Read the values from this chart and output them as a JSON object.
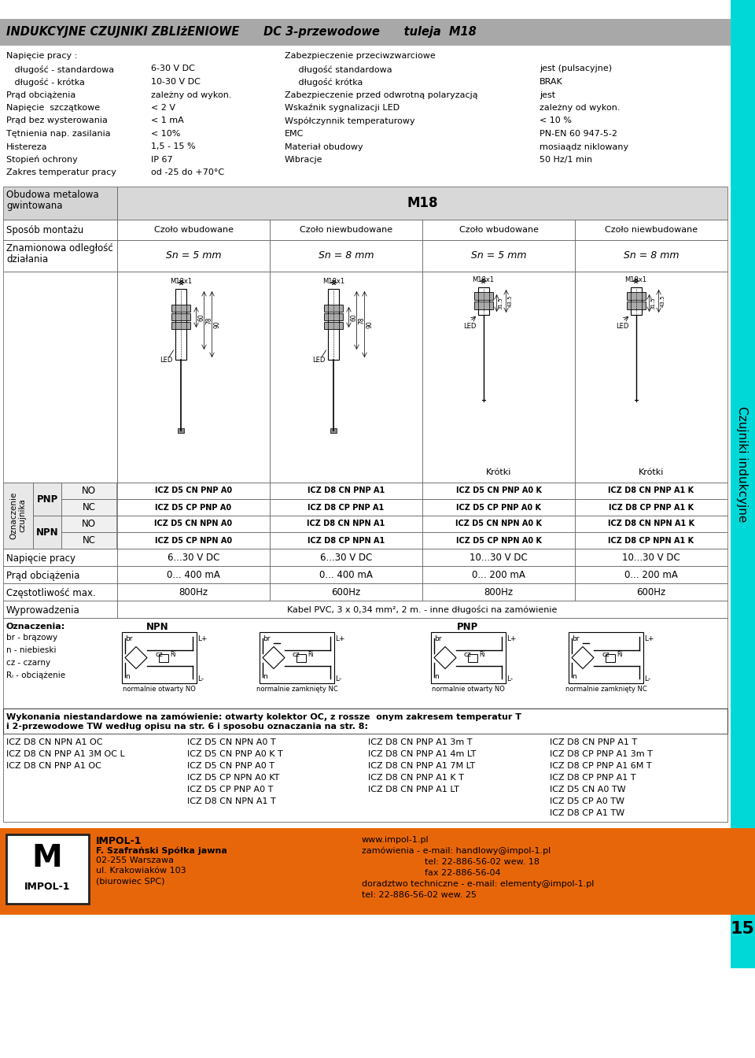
{
  "title": "INDUKCYJNE CZUJNIKI ZBLIżENIOWE      DC 3-przewodowe      tuleja  M18",
  "specs_left": [
    [
      "Napięcie pracy :",
      "",
      false
    ],
    [
      "   długość - standardowa",
      "6-30 V DC",
      false
    ],
    [
      "   długość - krótka",
      "10-30 V DC",
      false
    ],
    [
      "Prąd obciążenia",
      "zależny od wykon.",
      false
    ],
    [
      "Napięcie  szczątkowe",
      "< 2 V",
      false
    ],
    [
      "Prąd bez wysterowania",
      "< 1 mA",
      false
    ],
    [
      "Tętnienia nap. zasilania",
      "< 10%",
      false
    ],
    [
      "Histereza",
      "1,5 - 15 %",
      false
    ],
    [
      "Stopień ochrony",
      "IP 67",
      false
    ],
    [
      "Zakres temperatur pracy",
      "od -25 do +70°C",
      false
    ]
  ],
  "specs_right": [
    [
      "Zabezpieczenie przeciwzwarciowe",
      "",
      false
    ],
    [
      "     długość standardowa",
      "jest (pulsacyjne)",
      false
    ],
    [
      "     długość krótka",
      "BRAK",
      false
    ],
    [
      "Zabezpieczenie przed odwrotną polaryzacją",
      "jest",
      false
    ],
    [
      "Wskaźnik sygnalizacji LED",
      "zależny od wykon.",
      false
    ],
    [
      "Współczynnik temperaturowy",
      "< 10 %",
      false
    ],
    [
      "EMC",
      "PN-EN 60 947-5-2",
      false
    ],
    [
      "Materiał obudowy",
      "mosiaądz niklowany",
      false
    ],
    [
      "Wibracje",
      "50 Hz/1 min",
      false
    ]
  ],
  "mounting_types": [
    "Czoło wbudowane",
    "Czoło niewbudowane",
    "Czoło wbudowane",
    "Czoło niewbudowane"
  ],
  "distances": [
    "Sn = 5 mm",
    "Sn = 8 mm",
    "Sn = 5 mm",
    "Sn = 8 mm"
  ],
  "sensor_codes_PNP_NO": [
    "ICZ D5 CN PNP A0",
    "ICZ D8 CN PNP A1",
    "ICZ D5 CN PNP A0 K",
    "ICZ D8 CN PNP A1 K"
  ],
  "sensor_codes_PNP_NC": [
    "ICZ D5 CP PNP A0",
    "ICZ D8 CP PNP A1",
    "ICZ D5 CP PNP A0 K",
    "ICZ D8 CP PNP A1 K"
  ],
  "sensor_codes_NPN_NO": [
    "ICZ D5 CN NPN A0",
    "ICZ D8 CN NPN A1",
    "ICZ D5 CN NPN A0 K",
    "ICZ D8 CN NPN A1 K"
  ],
  "sensor_codes_NPN_NC": [
    "ICZ D5 CP NPN A0",
    "ICZ D8 CP NPN A1",
    "ICZ D5 CP NPN A0 K",
    "ICZ D8 CP NPN A1 K"
  ],
  "voltage_row": [
    "6...30 V DC",
    "6...30 V DC",
    "10...30 V DC",
    "10...30 V DC"
  ],
  "current_row": [
    "0... 400 mA",
    "0... 400 mA",
    "0... 200 mA",
    "0... 200 mA"
  ],
  "freq_row": [
    "800Hz",
    "600Hz",
    "800Hz",
    "600Hz"
  ],
  "cable_row": "Kabel PVC, 3 x 0,34 mm², 2 m. - inne długości na zamówienie",
  "wykonania_line1": "Wykonania niestandardowe na zamówienie: otwarty kolektor OC, z rossze  onym zakresem temperatur T",
  "wykonania_line2": "i 2-przewodowe TW według opisu na str. 6 i sposobu oznaczania na str. 8:",
  "bottom_col1": [
    "ICZ D8 CN NPN A1 OC",
    "ICZ D8 CN PNP A1 3M OC L",
    "ICZ D8 CN PNP A1 OC"
  ],
  "bottom_col2": [
    "ICZ D5 CN NPN A0 T",
    "ICZ D5 CN PNP A0 K T",
    "ICZ D5 CN PNP A0 T",
    "ICZ D5 CP NPN A0 KT",
    "ICZ D5 CP PNP A0 T",
    "ICZ D8 CN NPN A1 T"
  ],
  "bottom_col3": [
    "ICZ D8 CN PNP A1 3m T",
    "ICZ D8 CN PNP A1 4m LT",
    "ICZ D8 CN PNP A1 7M LT",
    "ICZ D8 CN PNP A1 K T",
    "ICZ D8 CN PNP A1 LT"
  ],
  "bottom_col4": [
    "ICZ D8 CN PNP A1 T",
    "ICZ D8 CP PNP A1 3m T",
    "ICZ D8 CP PNP A1 6M T",
    "ICZ D8 CP PNP A1 T",
    "ICZ D5 CN A0 TW",
    "ICZ D5 CP A0 TW",
    "ICZ D8 CP A1 TW"
  ],
  "footer_company_lines": [
    "IMPOL-1",
    "F. Szafrański Spółka jawna",
    "02-255 Warszawa",
    "ul. Krakowiaków 103",
    "(biurowiec SPC)"
  ],
  "footer_web_lines": [
    "www.impol-1.pl",
    "zamówienia - e-mail: handlowy@impol-1.pl",
    "tel: 22-886-56-02 wew. 18",
    "fax 22-886-56-04",
    "doradztwo techniczne - e-mail: elementy@impol-1.pl",
    "tel: 22-886-56-02 wew. 25"
  ],
  "legend_labels": [
    "br - brązowy",
    "n - niebieski",
    "cz - czarny",
    "Rₗ - obciążenie"
  ],
  "title_bg": "#a8a8a8",
  "header_bg": "#d0d0d0",
  "cyan_color": "#00d8d8",
  "orange_footer": "#e8660a",
  "page_num": "15"
}
